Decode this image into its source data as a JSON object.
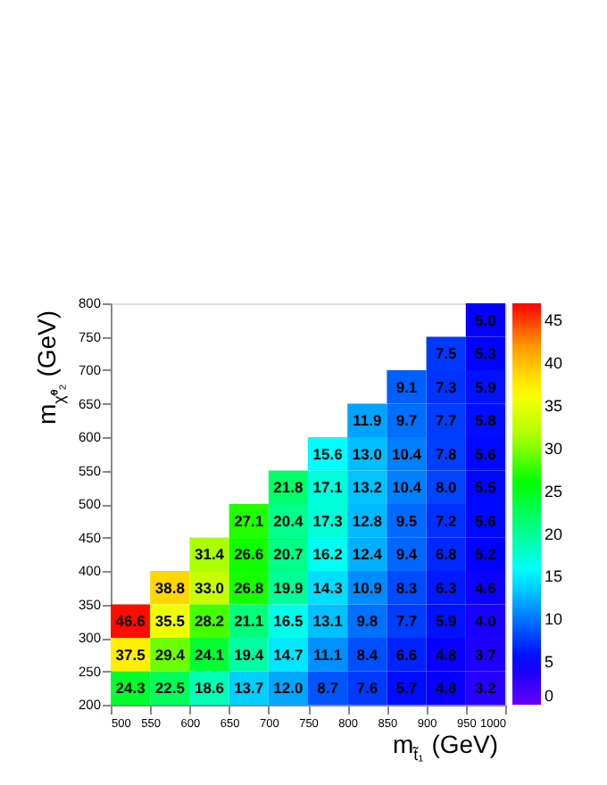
{
  "chart_data": {
    "type": "heatmap",
    "xlabel": "m$_{t̃₁}$ (GeV)",
    "ylabel": "m$_{χ̃⁰₂}$ (GeV)",
    "xlim": [
      500,
      1000
    ],
    "xticks": [
      500,
      550,
      600,
      650,
      700,
      750,
      800,
      850,
      900,
      950,
      1000
    ],
    "ylim": [
      200,
      800
    ],
    "yticks": [
      200,
      250,
      300,
      350,
      400,
      450,
      500,
      550,
      600,
      650,
      700,
      750,
      800
    ],
    "cells": [
      [
        null,
        null,
        null,
        null,
        null,
        null,
        null,
        null,
        null,
        5.0
      ],
      [
        null,
        null,
        null,
        null,
        null,
        null,
        null,
        null,
        7.5,
        5.3
      ],
      [
        null,
        null,
        null,
        null,
        null,
        null,
        null,
        9.1,
        7.3,
        5.9
      ],
      [
        null,
        null,
        null,
        null,
        null,
        null,
        11.9,
        9.7,
        7.7,
        5.8
      ],
      [
        null,
        null,
        null,
        null,
        null,
        15.6,
        13.0,
        10.4,
        7.8,
        5.6
      ],
      [
        null,
        null,
        null,
        null,
        21.8,
        17.1,
        13.2,
        10.4,
        8.0,
        5.5
      ],
      [
        null,
        null,
        null,
        27.1,
        20.4,
        17.3,
        12.8,
        9.5,
        7.2,
        5.6
      ],
      [
        null,
        null,
        31.4,
        26.6,
        20.7,
        16.2,
        12.4,
        9.4,
        6.8,
        5.2
      ],
      [
        null,
        38.8,
        33.0,
        26.8,
        19.9,
        14.3,
        10.9,
        8.3,
        6.3,
        4.6
      ],
      [
        46.6,
        35.5,
        28.2,
        21.1,
        16.5,
        13.1,
        9.8,
        7.7,
        5.9,
        4.0
      ],
      [
        37.5,
        29.4,
        24.1,
        19.4,
        14.7,
        11.1,
        8.4,
        6.6,
        4.8,
        3.7
      ],
      [
        24.3,
        22.5,
        18.6,
        13.7,
        12.0,
        8.7,
        7.6,
        5.7,
        4.8,
        3.2
      ]
    ],
    "cell_labels": [
      [
        null,
        null,
        null,
        null,
        null,
        null,
        null,
        null,
        null,
        "5.0"
      ],
      [
        null,
        null,
        null,
        null,
        null,
        null,
        null,
        null,
        "7.5",
        "5.3"
      ],
      [
        null,
        null,
        null,
        null,
        null,
        null,
        null,
        "9.1",
        "7.3",
        "5.9"
      ],
      [
        null,
        null,
        null,
        null,
        null,
        null,
        "11.9",
        "9.7",
        "7.7",
        "5.8"
      ],
      [
        null,
        null,
        null,
        null,
        null,
        "15.6",
        "13.0",
        "10.4",
        "7.8",
        "5.6"
      ],
      [
        null,
        null,
        null,
        null,
        "21.8",
        "17.1",
        "13.2",
        "10.4",
        "8.0",
        "5.5"
      ],
      [
        null,
        null,
        null,
        "27.1",
        "20.4",
        "17.3",
        "12.8",
        "9.5",
        "7.2",
        "5.6"
      ],
      [
        null,
        null,
        "31.4",
        "26.6",
        "20.7",
        "16.2",
        "12.4",
        "9.4",
        "6.8",
        "5.2"
      ],
      [
        null,
        "38.8",
        "33.0",
        "26.8",
        "19.9",
        "14.3",
        "10.9",
        "8.3",
        "6.3",
        "4.6"
      ],
      [
        "46.6",
        "35.5",
        "28.2",
        "21.1",
        "16.5",
        "13.1",
        "9.8",
        "7.7",
        "5.9",
        "4.0"
      ],
      [
        "37.5",
        "29.4",
        "24.1",
        "19.4",
        "14.7",
        "11.1",
        "8.4",
        "6.6",
        "4.8",
        "3.7"
      ],
      [
        "24.3",
        "22.5",
        "18.6",
        "13.7",
        "12.0",
        "8.7",
        "7.6",
        "5.7",
        "4.8",
        "3.2"
      ]
    ],
    "clim": [
      0,
      47
    ],
    "cticks": [
      0,
      5,
      10,
      15,
      20,
      25,
      30,
      35,
      40,
      45
    ],
    "colors": [
      "#6600ff",
      "#0000ff",
      "#0080ff",
      "#00ffff",
      "#00ff80",
      "#00ff00",
      "#aaff00",
      "#ffff00",
      "#ffa000",
      "#ff0000"
    ],
    "data_labels": true,
    "grid": false
  }
}
